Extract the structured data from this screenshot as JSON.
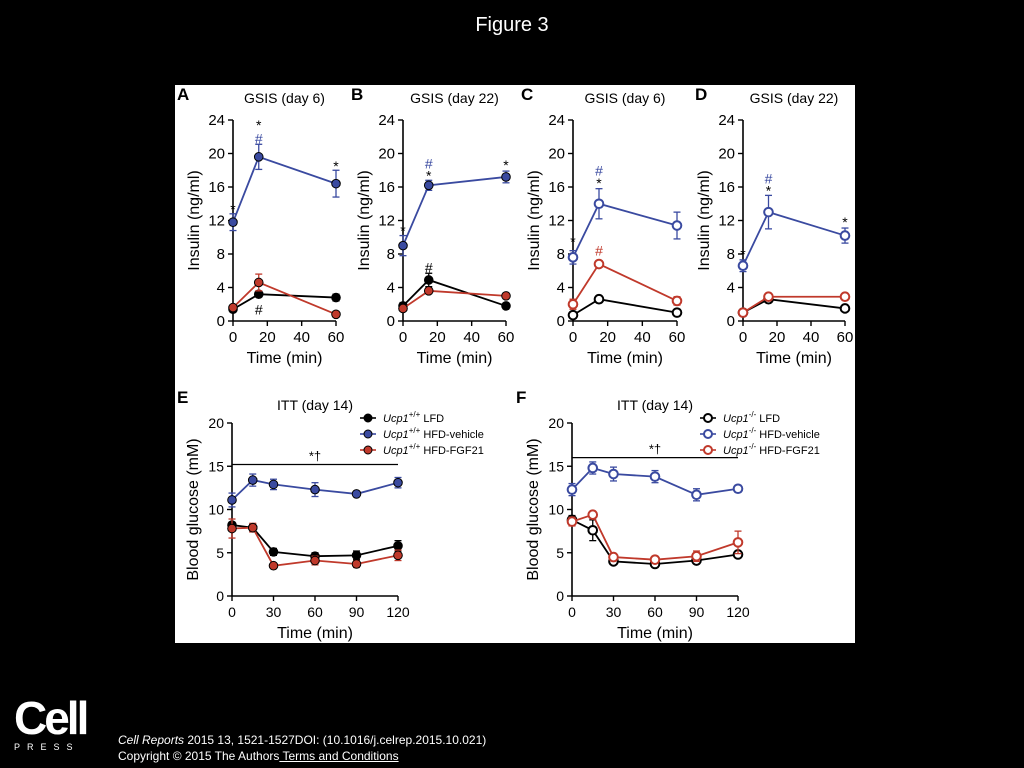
{
  "page": {
    "title": "Figure 3"
  },
  "logo": {
    "word": "Cell",
    "sub": "PRESS"
  },
  "citation": {
    "journal": "Cell Reports",
    "ref": " 2015 13, 1521-1527DOI: (10.1016/j.celrep.2015.10.021)",
    "copyright": "Copyright © 2015 The Authors",
    "terms": " Terms and Conditions"
  },
  "colors": {
    "black": "#000000",
    "blue": "#3a4aa0",
    "red": "#c0392b"
  },
  "chart_data": [
    {
      "panel": "A",
      "type": "line",
      "title": "GSIS (day 6)",
      "xlabel": "Time (min)",
      "ylabel": "Insulin (ng/ml)",
      "xlim": [
        0,
        60
      ],
      "ylim": [
        0,
        24
      ],
      "xticks": [
        "0",
        "20",
        "40",
        "60"
      ],
      "yticks": [
        "0",
        "4",
        "8",
        "12",
        "16",
        "20",
        "24"
      ],
      "marker": "filled",
      "series": [
        {
          "name": "LFD",
          "color": "black",
          "x": [
            0,
            15,
            60
          ],
          "y": [
            1.4,
            3.2,
            2.8
          ],
          "err": [
            0.3,
            0.3,
            0.4
          ]
        },
        {
          "name": "HFD-vehicle",
          "color": "blue",
          "x": [
            0,
            15,
            60
          ],
          "y": [
            11.8,
            19.6,
            16.4
          ],
          "err": [
            1.0,
            1.5,
            1.6
          ]
        },
        {
          "name": "HFD-FGF21",
          "color": "red",
          "x": [
            0,
            15,
            60
          ],
          "y": [
            1.6,
            4.6,
            0.8
          ],
          "err": [
            0.3,
            1.0,
            0.2
          ]
        }
      ],
      "annotations": [
        {
          "text": "*",
          "x": 0,
          "y": 13.4,
          "color": "black"
        },
        {
          "text": "*",
          "x": 15,
          "y": 23.4,
          "color": "black"
        },
        {
          "text": "#",
          "x": 15,
          "y": 21.8,
          "color": "blue"
        },
        {
          "text": "*",
          "x": 60,
          "y": 18.5,
          "color": "black"
        },
        {
          "text": "#",
          "x": 15,
          "y": 1.4,
          "color": "black"
        }
      ]
    },
    {
      "panel": "B",
      "type": "line",
      "title": "GSIS (day 22)",
      "xlabel": "Time (min)",
      "ylabel": "Insulin (ng/ml)",
      "xlim": [
        0,
        60
      ],
      "ylim": [
        0,
        24
      ],
      "xticks": [
        "0",
        "20",
        "40",
        "60"
      ],
      "yticks": [
        "0",
        "4",
        "8",
        "12",
        "16",
        "20",
        "24"
      ],
      "marker": "filled",
      "series": [
        {
          "name": "LFD",
          "color": "black",
          "x": [
            0,
            15,
            60
          ],
          "y": [
            1.8,
            4.9,
            1.8
          ],
          "err": [
            0.4,
            0.8,
            0.3
          ]
        },
        {
          "name": "HFD-vehicle",
          "color": "blue",
          "x": [
            0,
            15,
            60
          ],
          "y": [
            9.0,
            16.2,
            17.2
          ],
          "err": [
            1.2,
            0.6,
            0.7
          ]
        },
        {
          "name": "HFD-FGF21",
          "color": "red",
          "x": [
            0,
            15,
            60
          ],
          "y": [
            1.5,
            3.6,
            3.0
          ],
          "err": [
            0.3,
            0.3,
            0.2
          ]
        }
      ],
      "annotations": [
        {
          "text": "*",
          "x": 0,
          "y": 10.8,
          "color": "black"
        },
        {
          "text": "*",
          "x": 15,
          "y": 17.4,
          "color": "black"
        },
        {
          "text": "#",
          "x": 15,
          "y": 18.8,
          "color": "blue"
        },
        {
          "text": "*",
          "x": 60,
          "y": 18.6,
          "color": "black"
        },
        {
          "text": "#",
          "x": 15,
          "y": 6.4,
          "color": "black"
        }
      ]
    },
    {
      "panel": "C",
      "type": "line",
      "title": "GSIS (day 6)",
      "xlabel": "Time (min)",
      "ylabel": "Insulin (ng/ml)",
      "xlim": [
        0,
        60
      ],
      "ylim": [
        0,
        24
      ],
      "xticks": [
        "0",
        "20",
        "40",
        "60"
      ],
      "yticks": [
        "0",
        "4",
        "8",
        "12",
        "16",
        "20",
        "24"
      ],
      "marker": "open",
      "series": [
        {
          "name": "LFD",
          "color": "black",
          "x": [
            0,
            15,
            60
          ],
          "y": [
            0.7,
            2.6,
            1.0
          ],
          "err": [
            0.2,
            0.3,
            0.2
          ]
        },
        {
          "name": "HFD-vehicle",
          "color": "blue",
          "x": [
            0,
            15,
            60
          ],
          "y": [
            7.6,
            14.0,
            11.4
          ],
          "err": [
            0.8,
            1.8,
            1.6
          ]
        },
        {
          "name": "HFD-FGF21",
          "color": "red",
          "x": [
            0,
            15,
            60
          ],
          "y": [
            2.0,
            6.8,
            2.4
          ],
          "err": [
            0.6,
            0.3,
            0.5
          ]
        }
      ],
      "annotations": [
        {
          "text": "*",
          "x": 0,
          "y": 9.5,
          "color": "black"
        },
        {
          "text": "*",
          "x": 15,
          "y": 16.5,
          "color": "black"
        },
        {
          "text": "#",
          "x": 15,
          "y": 18.0,
          "color": "blue"
        },
        {
          "text": "#",
          "x": 15,
          "y": 8.4,
          "color": "red"
        }
      ]
    },
    {
      "panel": "D",
      "type": "line",
      "title": "GSIS (day 22)",
      "xlabel": "Time (min)",
      "ylabel": "Insulin (ng/ml)",
      "xlim": [
        0,
        60
      ],
      "ylim": [
        0,
        24
      ],
      "xticks": [
        "0",
        "20",
        "40",
        "60"
      ],
      "yticks": [
        "0",
        "4",
        "8",
        "12",
        "16",
        "20",
        "24"
      ],
      "marker": "open",
      "series": [
        {
          "name": "LFD",
          "color": "black",
          "x": [
            0,
            15,
            60
          ],
          "y": [
            1.0,
            2.6,
            1.5
          ],
          "err": [
            0.2,
            0.3,
            0.2
          ]
        },
        {
          "name": "HFD-vehicle",
          "color": "blue",
          "x": [
            0,
            15,
            60
          ],
          "y": [
            6.6,
            13.0,
            10.2
          ],
          "err": [
            0.7,
            2.0,
            0.9
          ]
        },
        {
          "name": "HFD-FGF21",
          "color": "red",
          "x": [
            0,
            15,
            60
          ],
          "y": [
            1.0,
            2.9,
            2.9
          ],
          "err": [
            0.2,
            0.2,
            0.2
          ]
        }
      ],
      "annotations": [
        {
          "text": "*",
          "x": 0,
          "y": 8.0,
          "color": "black"
        },
        {
          "text": "*",
          "x": 15,
          "y": 15.6,
          "color": "black"
        },
        {
          "text": "#",
          "x": 15,
          "y": 17.0,
          "color": "blue"
        },
        {
          "text": "*",
          "x": 60,
          "y": 11.8,
          "color": "black"
        }
      ]
    },
    {
      "panel": "E",
      "type": "line",
      "title": "ITT (day 14)",
      "xlabel": "Time (min)",
      "ylabel": "Blood glucose (mM)",
      "xlim": [
        0,
        120
      ],
      "ylim": [
        0,
        20
      ],
      "xticks": [
        "0",
        "30",
        "60",
        "90",
        "120"
      ],
      "yticks": [
        "0",
        "5",
        "10",
        "15",
        "20"
      ],
      "marker": "filled",
      "significance": {
        "text": "*†",
        "x_start": 0,
        "x_end": 120,
        "y": 15.2
      },
      "legend": {
        "position": "top-right",
        "prefix": "Ucp1",
        "superscript": "+/+"
      },
      "series": [
        {
          "name": "LFD",
          "color": "black",
          "x": [
            0,
            15,
            30,
            60,
            90,
            120
          ],
          "y": [
            8.2,
            7.9,
            5.1,
            4.6,
            4.7,
            5.8
          ],
          "err": [
            0.3,
            0.4,
            0.4,
            0.4,
            0.5,
            0.6
          ]
        },
        {
          "name": "HFD-vehicle",
          "color": "blue",
          "x": [
            0,
            15,
            30,
            60,
            90,
            120
          ],
          "y": [
            11.1,
            13.4,
            12.9,
            12.3,
            11.8,
            13.1
          ],
          "err": [
            0.8,
            0.7,
            0.6,
            0.8,
            0.3,
            0.6
          ]
        },
        {
          "name": "HFD-FGF21",
          "color": "red",
          "x": [
            0,
            15,
            30,
            60,
            90,
            120
          ],
          "y": [
            7.8,
            7.9,
            3.5,
            4.1,
            3.7,
            4.7
          ],
          "err": [
            1.1,
            0.5,
            0.3,
            0.5,
            0.4,
            0.6
          ]
        }
      ]
    },
    {
      "panel": "F",
      "type": "line",
      "title": "ITT (day 14)",
      "xlabel": "Time (min)",
      "ylabel": "Blood glucose (mM)",
      "xlim": [
        0,
        120
      ],
      "ylim": [
        0,
        20
      ],
      "xticks": [
        "0",
        "30",
        "60",
        "90",
        "120"
      ],
      "yticks": [
        "0",
        "5",
        "10",
        "15",
        "20"
      ],
      "marker": "open",
      "significance": {
        "text": "*†",
        "x_start": 0,
        "x_end": 120,
        "y": 16.0
      },
      "legend": {
        "position": "top-right",
        "prefix": "Ucp1",
        "superscript": "-/-"
      },
      "series": [
        {
          "name": "LFD",
          "color": "black",
          "x": [
            0,
            15,
            30,
            60,
            90,
            120
          ],
          "y": [
            8.8,
            7.6,
            4.0,
            3.7,
            4.1,
            4.8
          ],
          "err": [
            0.5,
            1.2,
            0.4,
            0.4,
            0.4,
            0.3
          ]
        },
        {
          "name": "HFD-vehicle",
          "color": "blue",
          "x": [
            0,
            15,
            30,
            60,
            90,
            120
          ],
          "y": [
            12.3,
            14.8,
            14.1,
            13.8,
            11.7,
            12.4
          ],
          "err": [
            0.7,
            0.7,
            0.8,
            0.7,
            0.7,
            0.4
          ]
        },
        {
          "name": "HFD-FGF21",
          "color": "red",
          "x": [
            0,
            15,
            30,
            60,
            90,
            120
          ],
          "y": [
            8.6,
            9.4,
            4.5,
            4.2,
            4.6,
            6.2
          ],
          "err": [
            0.5,
            0.3,
            0.4,
            0.4,
            0.6,
            1.3
          ]
        }
      ]
    }
  ]
}
